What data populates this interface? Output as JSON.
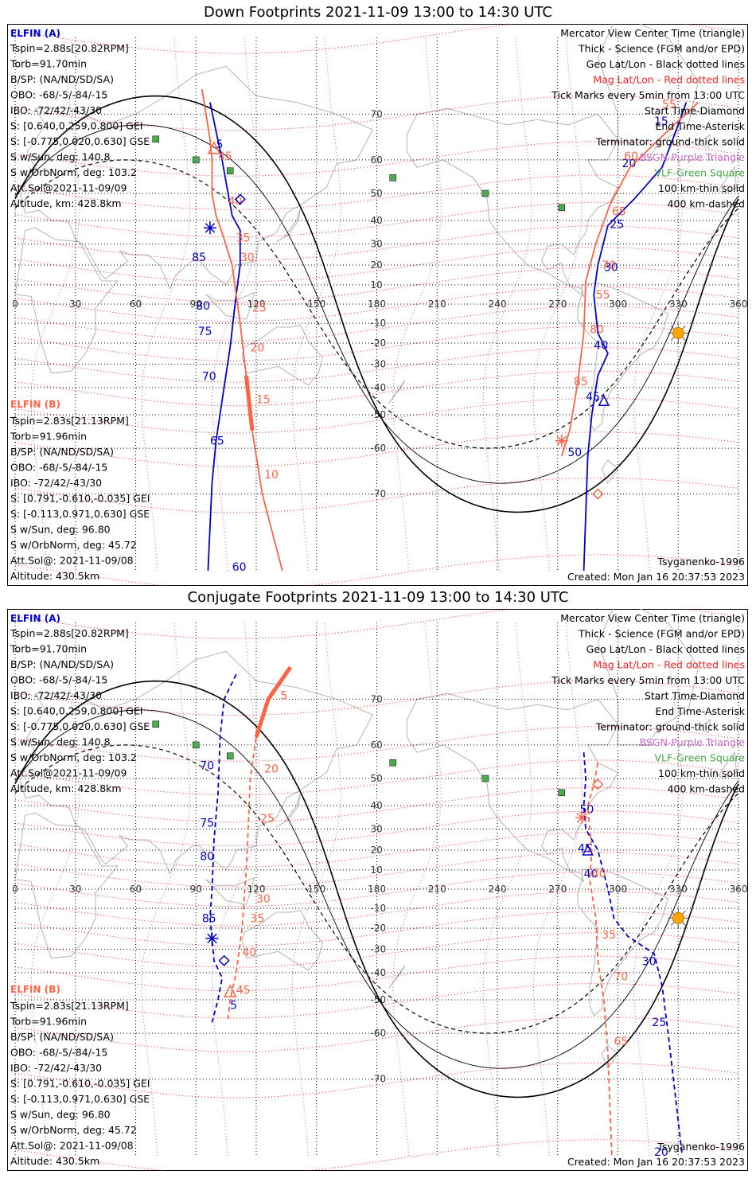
{
  "panels": [
    {
      "title": "Down Footprints 2021-11-09 13:00 to 14:30 UTC",
      "elfin_a": {
        "header": "ELFIN (A)",
        "lines": [
          "Tspin=2.88s[20.82RPM]",
          "Torb=91.70min",
          "B/SP: (NA/ND/SD/SA)",
          "OBO: -68/-5/-84/-15",
          "IBO: -72/42/-43/30",
          "S: [0.640,0.259,0.800] GEI",
          "S: [-0.775,0.020,0.630] GSE",
          "S w/Sun, deg: 140.8",
          "S w/OrbNorm, deg: 103.2",
          "Att.Sol@2021-11-09/09",
          "Altitude, km: 428.8km"
        ]
      },
      "elfin_b": {
        "header": "ELFIN (B)",
        "lines": [
          "Tspin=2.83s[21.13RPM]",
          "Torb=91.96min",
          "B/SP: (NA/ND/SD/SA)",
          "OBO: -68/-5/-84/-15",
          "IBO: -72/42/-43/30",
          "S: [0.791,-0.610,-0.035] GEI",
          "S: [-0.113,0.971,0.630] GSE",
          "S w/Sun, deg: 96.80",
          "S w/OrbNorm, deg: 45.72",
          "Att.Sol@: 2021-11-09/08",
          "Altitude: 430.5km"
        ]
      },
      "legend": [
        "Mercator View Center Time (triangle)",
        "Thick - Science (FGM and/or EPD)",
        "Geo Lat/Lon - Black dotted lines",
        "Mag Lat/Lon - Red dotted lines",
        "Tick Marks every 5min from 13:00 UTC",
        "Start Time-Diamond",
        "End Time-Asterisk",
        "Terminator: ground-thick solid",
        "BSGN-Purple Triangle",
        "VLF-Green Square",
        "100 km-thin solid",
        "400 km-dashed"
      ],
      "model": "Tsyganenko-1996",
      "created": "Created: Mon Jan 16 20:37:53 2023",
      "tracks": [
        {
          "color": "#0000cc",
          "style": "solid",
          "points": [
            [
              97,
              72
            ],
            [
              103,
              60
            ],
            [
              106,
              50
            ],
            [
              108,
              42
            ],
            [
              112,
              36
            ],
            [
              112,
              20
            ],
            [
              110,
              5
            ],
            [
              107,
              -22
            ],
            [
              103,
              -45
            ],
            [
              100,
              -58
            ],
            [
              98,
              -68
            ],
            [
              96,
              -80
            ]
          ],
          "labels": [
            {
              "text": "5",
              "lon": 100,
              "lat": 63
            },
            {
              "text": "85",
              "lon": 88,
              "lat": 22
            },
            {
              "text": "80",
              "lon": 90,
              "lat": -3
            },
            {
              "text": "75",
              "lon": 91,
              "lat": -16
            },
            {
              "text": "70",
              "lon": 93,
              "lat": -37
            },
            {
              "text": "65",
              "lon": 97,
              "lat": -59
            },
            {
              "text": "60",
              "lon": 108,
              "lat": -80
            }
          ]
        },
        {
          "color": "#ff6347",
          "style": "solid",
          "points": [
            [
              93,
              74
            ],
            [
              97,
              65
            ],
            [
              98,
              60
            ],
            [
              98,
              50
            ],
            [
              100,
              42
            ],
            [
              103,
              35
            ],
            [
              108,
              20
            ],
            [
              110,
              5
            ],
            [
              112,
              -10
            ],
            [
              115,
              -35
            ],
            [
              118,
              -55
            ],
            [
              123,
              -70
            ],
            [
              133,
              -80
            ]
          ],
          "labels": [
            {
              "text": "45",
              "lon": 101,
              "lat": 60
            },
            {
              "text": "40",
              "lon": 106,
              "lat": 46
            },
            {
              "text": "35",
              "lon": 110,
              "lat": 31
            },
            {
              "text": "30",
              "lon": 112,
              "lat": 22
            },
            {
              "text": "25",
              "lon": 118,
              "lat": -4
            },
            {
              "text": "20",
              "lon": 117,
              "lat": -24
            },
            {
              "text": "15",
              "lon": 120,
              "lat": -46
            },
            {
              "text": "10",
              "lon": 124,
              "lat": -67
            }
          ]
        },
        {
          "color": "#0000cc",
          "style": "solid",
          "points": [
            [
              334,
              72
            ],
            [
              330,
              68
            ],
            [
              322,
              58
            ],
            [
              308,
              48
            ],
            [
              295,
              38
            ],
            [
              290,
              20
            ],
            [
              288,
              5
            ],
            [
              290,
              -15
            ],
            [
              295,
              -25
            ],
            [
              290,
              -35
            ],
            [
              287,
              -50
            ],
            [
              285,
              -62
            ],
            [
              283,
              -80
            ]
          ],
          "labels": [
            {
              "text": "15",
              "lon": 318,
              "lat": 68
            },
            {
              "text": "20",
              "lon": 302,
              "lat": 58
            },
            {
              "text": "25",
              "lon": 296,
              "lat": 37
            },
            {
              "text": "30",
              "lon": 293,
              "lat": 17
            },
            {
              "text": "40",
              "lon": 288,
              "lat": -23
            },
            {
              "text": "45",
              "lon": 284,
              "lat": -45
            },
            {
              "text": "50",
              "lon": 275,
              "lat": -62
            }
          ]
        },
        {
          "color": "#ff6347",
          "style": "solid",
          "points": [
            [
              340,
              72
            ],
            [
              328,
              68
            ],
            [
              306,
              58
            ],
            [
              296,
              46
            ],
            [
              289,
              30
            ],
            [
              284,
              12
            ],
            [
              283,
              -15
            ],
            [
              280,
              -38
            ],
            [
              276,
              -55
            ],
            [
              272,
              -62
            ]
          ],
          "labels": [
            {
              "text": "55",
              "lon": 322,
              "lat": 71
            },
            {
              "text": "60",
              "lon": 303,
              "lat": 60
            },
            {
              "text": "65",
              "lon": 297,
              "lat": 42
            },
            {
              "text": "70",
              "lon": 292,
              "lat": 18
            },
            {
              "text": "55",
              "lon": 289,
              "lat": 3
            },
            {
              "text": "80",
              "lon": 286,
              "lat": -15
            },
            {
              "text": "85",
              "lon": 278,
              "lat": -39
            }
          ]
        }
      ]
    },
    {
      "title": "Conjugate Footprints 2021-11-09 13:00 to 14:30 UTC",
      "elfin_a": {
        "header": "ELFIN (A)",
        "lines": [
          "Tspin=2.88s[20.82RPM]",
          "Torb=91.70min",
          "B/SP: (NA/ND/SD/SA)",
          "OBO: -68/-5/-84/-15",
          "IBO: -72/42/-43/30",
          "S: [0.640,0.259,0.800] GEI",
          "S: [-0.775,0.020,0.630] GSE",
          "S w/Sun, deg: 140.8",
          "S w/OrbNorm, deg: 103.2",
          "Att.Sol@2021-11-09/09",
          "Altitude, km: 428.8km"
        ]
      },
      "elfin_b": {
        "header": "ELFIN (B)",
        "lines": [
          "Tspin=2.83s[21.13RPM]",
          "Torb=91.96min",
          "B/SP: (NA/ND/SD/SA)",
          "OBO: -68/-5/-84/-15",
          "IBO: -72/42/-43/30",
          "S: [0.791,-0.610,-0.035] GEI",
          "S: [-0.113,0.971,0.630] GSE",
          "S w/Sun, deg: 96.80",
          "S w/OrbNorm, deg: 45.72",
          "Att.Sol@: 2021-11-09/08",
          "Altitude: 430.5km"
        ]
      },
      "legend": [
        "Mercator View Center Time (triangle)",
        "Thick - Science (FGM and/or EPD)",
        "Geo Lat/Lon - Black dotted lines",
        "Mag Lat/Lon - Red dotted lines",
        "Tick Marks every 5min from 13:00 UTC",
        "Start Time-Diamond",
        "End Time-Asterisk",
        "Terminator: ground-thick solid",
        "BSGN-Purple Triangle",
        "VLF-Green Square",
        "100 km-thin solid",
        "400 km-dashed"
      ],
      "model": "Tsyganenko-1996",
      "created": "Created: Mon Jan 16 20:37:53 2023",
      "tracks": [
        {
          "color": "#0000cc",
          "style": "dashed",
          "points": [
            [
              110,
              74
            ],
            [
              104,
              70
            ],
            [
              102,
              62
            ],
            [
              101,
              45
            ],
            [
              99,
              25
            ],
            [
              98,
              0
            ],
            [
              97,
              -15
            ],
            [
              99,
              -35
            ],
            [
              103,
              -42
            ],
            [
              101,
              -50
            ],
            [
              98,
              -57
            ]
          ],
          "labels": [
            {
              "text": "70",
              "lon": 92,
              "lat": 53
            },
            {
              "text": "75",
              "lon": 92,
              "lat": 31
            },
            {
              "text": "80",
              "lon": 92,
              "lat": 15
            },
            {
              "text": "85",
              "lon": 93,
              "lat": -17
            },
            {
              "text": "5",
              "lon": 107,
              "lat": -53
            }
          ]
        },
        {
          "color": "#ff6347",
          "style": "dashed",
          "points": [
            [
              137,
              75
            ],
            [
              126,
              70
            ],
            [
              120,
              62
            ],
            [
              117,
              50
            ],
            [
              116,
              30
            ],
            [
              115,
              10
            ],
            [
              113,
              -20
            ],
            [
              110,
              -40
            ],
            [
              107,
              -50
            ],
            [
              106,
              -56
            ]
          ],
          "labels": [
            {
              "text": "5",
              "lon": 132,
              "lat": 70
            },
            {
              "text": "20",
              "lon": 124,
              "lat": 52
            },
            {
              "text": "25",
              "lon": 122,
              "lat": 33
            },
            {
              "text": "30",
              "lon": 120,
              "lat": -7
            },
            {
              "text": "35",
              "lon": 117,
              "lat": -17
            },
            {
              "text": "40",
              "lon": 113,
              "lat": -33
            },
            {
              "text": "45",
              "lon": 110,
              "lat": -48
            }
          ]
        },
        {
          "color": "#0000cc",
          "style": "dashed",
          "points": [
            [
              283,
              58
            ],
            [
              284,
              50
            ],
            [
              283,
              40
            ],
            [
              284,
              30
            ],
            [
              290,
              20
            ],
            [
              295,
              0
            ],
            [
              298,
              -15
            ],
            [
              305,
              -24
            ],
            [
              318,
              -32
            ],
            [
              322,
              -45
            ],
            [
              325,
              -60
            ],
            [
              332,
              -80
            ]
          ],
          "labels": [
            {
              "text": "50",
              "lon": 281,
              "lat": 37
            },
            {
              "text": "45",
              "lon": 280,
              "lat": 19
            },
            {
              "text": "40",
              "lon": 283,
              "lat": 6
            },
            {
              "text": "30",
              "lon": 312,
              "lat": -37
            },
            {
              "text": "25",
              "lon": 317,
              "lat": -58
            },
            {
              "text": "20",
              "lon": 318,
              "lat": -80
            }
          ]
        },
        {
          "color": "#ff6347",
          "style": "dashed",
          "points": [
            [
              290,
              55
            ],
            [
              288,
              48
            ],
            [
              285,
              40
            ],
            [
              286,
              30
            ],
            [
              287,
              20
            ],
            [
              286,
              5
            ],
            [
              289,
              -15
            ],
            [
              290,
              -35
            ],
            [
              293,
              -50
            ],
            [
              295,
              -65
            ],
            [
              297,
              -80
            ]
          ],
          "labels": [
            {
              "text": "40",
              "lon": 287,
              "lat": 6
            },
            {
              "text": "35",
              "lon": 292,
              "lat": -25
            },
            {
              "text": "70",
              "lon": 298,
              "lat": -43
            },
            {
              "text": "65",
              "lon": 298,
              "lat": -63
            }
          ]
        }
      ]
    }
  ]
}
